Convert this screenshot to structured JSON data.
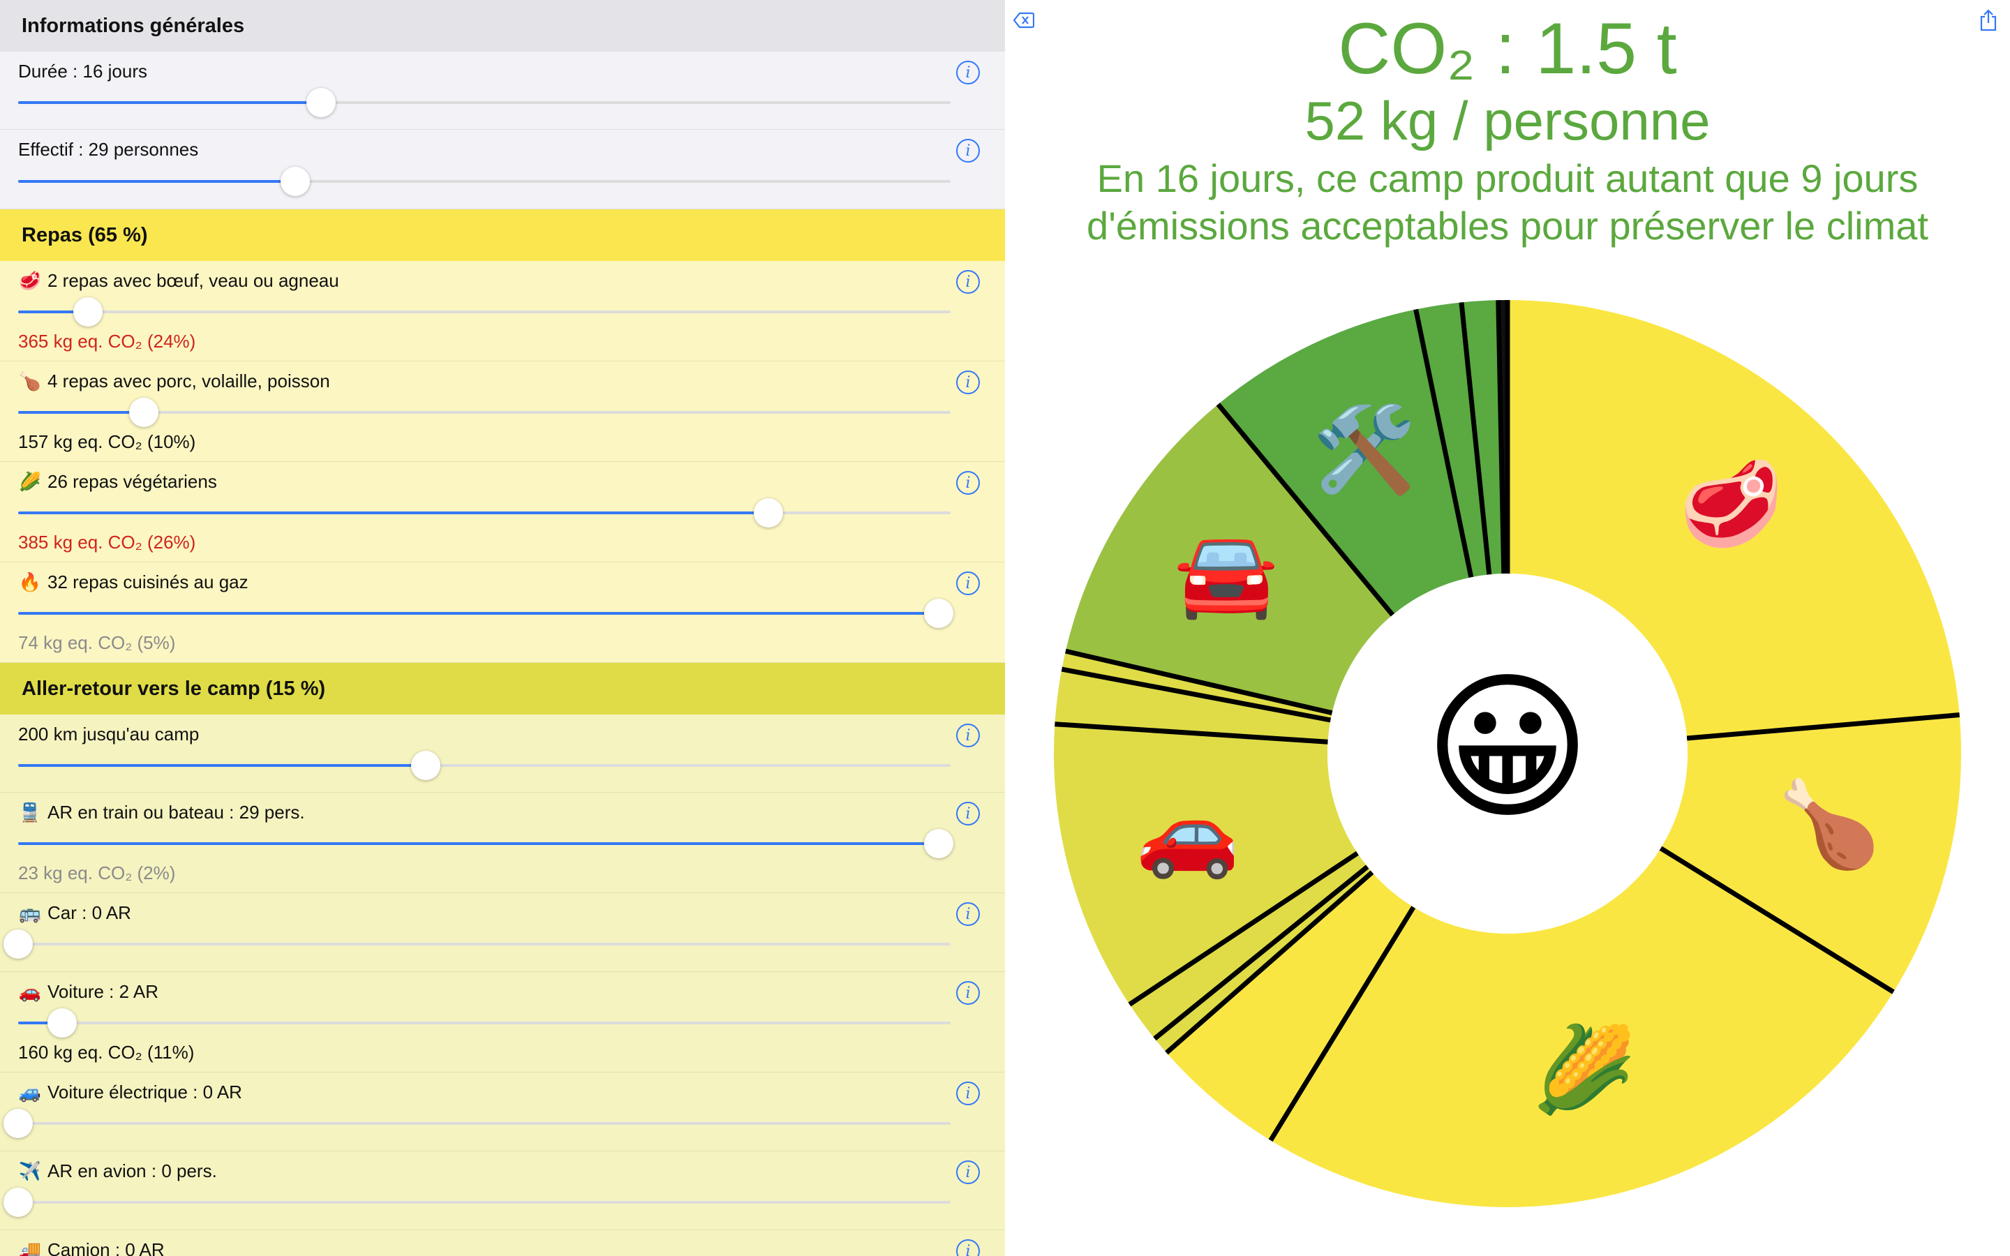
{
  "general": {
    "header": "Informations générales",
    "duration_label": "Durée : 16 jours",
    "duration_fraction": 0.325,
    "headcount_label": "Effectif : 29 personnes",
    "headcount_fraction": 0.297
  },
  "meals": {
    "header": "Repas (65 %)",
    "items": [
      {
        "icon": "🥩",
        "label": "2 repas avec bœuf, veau ou agneau",
        "fraction": 0.075,
        "result": "365 kg eq. CO₂ (24%)",
        "result_tone": "red"
      },
      {
        "icon": "🍗",
        "label": "4 repas avec porc, volaille, poisson",
        "fraction": 0.135,
        "result": "157 kg eq. CO₂ (10%)",
        "result_tone": "black"
      },
      {
        "icon": "🌽",
        "label": "26 repas végétariens",
        "fraction": 0.805,
        "result": "385 kg eq. CO₂ (26%)",
        "result_tone": "red"
      },
      {
        "icon": "🔥",
        "label": "32 repas cuisinés au gaz",
        "fraction": 0.987,
        "result": "74 kg eq. CO₂ (5%)",
        "result_tone": "grey"
      }
    ]
  },
  "transport": {
    "header": "Aller-retour vers le camp (15 %)",
    "distance_label": "200 km jusqu'au camp",
    "distance_fraction": 0.437,
    "items": [
      {
        "icon": "🚆",
        "label": "AR en train ou bateau : 29 pers.",
        "fraction": 0.987,
        "result": "23 kg eq. CO₂ (2%)",
        "result_tone": "grey"
      },
      {
        "icon": "🚌",
        "label": "Car : 0 AR",
        "fraction": 0.0,
        "result": "",
        "result_tone": "grey"
      },
      {
        "icon": "🚗",
        "label": "Voiture : 2 AR",
        "fraction": 0.047,
        "result": "160 kg eq. CO₂ (11%)",
        "result_tone": "black"
      },
      {
        "icon": "🚙",
        "label": "Voiture électrique : 0 AR",
        "fraction": 0.0,
        "result": "",
        "result_tone": "grey"
      },
      {
        "icon": "✈️",
        "label": "AR en avion : 0 pers.",
        "fraction": 0.0,
        "result": "",
        "result_tone": "grey"
      },
      {
        "icon": "🚚",
        "label": "Camion : 0 AR",
        "fraction": 0.0,
        "result": "",
        "result_tone": "grey"
      }
    ]
  },
  "info_glyph": "i",
  "colors": {
    "accent": "#3478f6",
    "title_green": "#5ba83e",
    "general_header_bg": "#e3e3e8",
    "general_row_bg": "#f2f2f7",
    "meals_header_bg": "#fae750",
    "meals_row_bg": "#fcf6c3",
    "transport_header_bg": "#dfdc47",
    "transport_row_bg": "#f5f3c0"
  },
  "summary": {
    "title": "CO₂ : 1.5 t",
    "per_person": "52 kg / personne",
    "line1": "En 16 jours, ce camp produit autant que 9 jours",
    "line2": "d'émissions acceptables pour préserver le climat",
    "center_emoji": "😀",
    "left_corner_icon": "delete-back-icon",
    "right_corner_icon": "share-icon"
  },
  "chart_data": {
    "type": "pie",
    "style": "donut",
    "units": "kg eq. CO₂",
    "slices": [
      {
        "value": 365,
        "icon": "🥩",
        "color": "#fae643"
      },
      {
        "value": 157,
        "icon": "🍗",
        "color": "#fae643"
      },
      {
        "value": 385,
        "icon": "🌽",
        "color": "#fae643"
      },
      {
        "value": 74,
        "icon": "",
        "color": "#fae643"
      },
      {
        "value": 10,
        "icon": "",
        "color": "#dfdc47"
      },
      {
        "value": 23,
        "icon": "",
        "color": "#dfdc47"
      },
      {
        "value": 160,
        "icon": "🚗",
        "color": "#dfdc47"
      },
      {
        "value": 30,
        "icon": "",
        "color": "#dfdc47"
      },
      {
        "value": 10,
        "icon": "",
        "color": "#dfdc47"
      },
      {
        "value": 160,
        "icon": "🚘",
        "color": "#9ac142"
      },
      {
        "value": 120,
        "icon": "🛠️",
        "color": "#5aa941"
      },
      {
        "value": 25,
        "icon": "",
        "color": "#5aa941"
      },
      {
        "value": 20,
        "icon": "",
        "color": "#5aa941"
      },
      {
        "value": 5,
        "icon": "",
        "color": "#111111"
      }
    ]
  }
}
